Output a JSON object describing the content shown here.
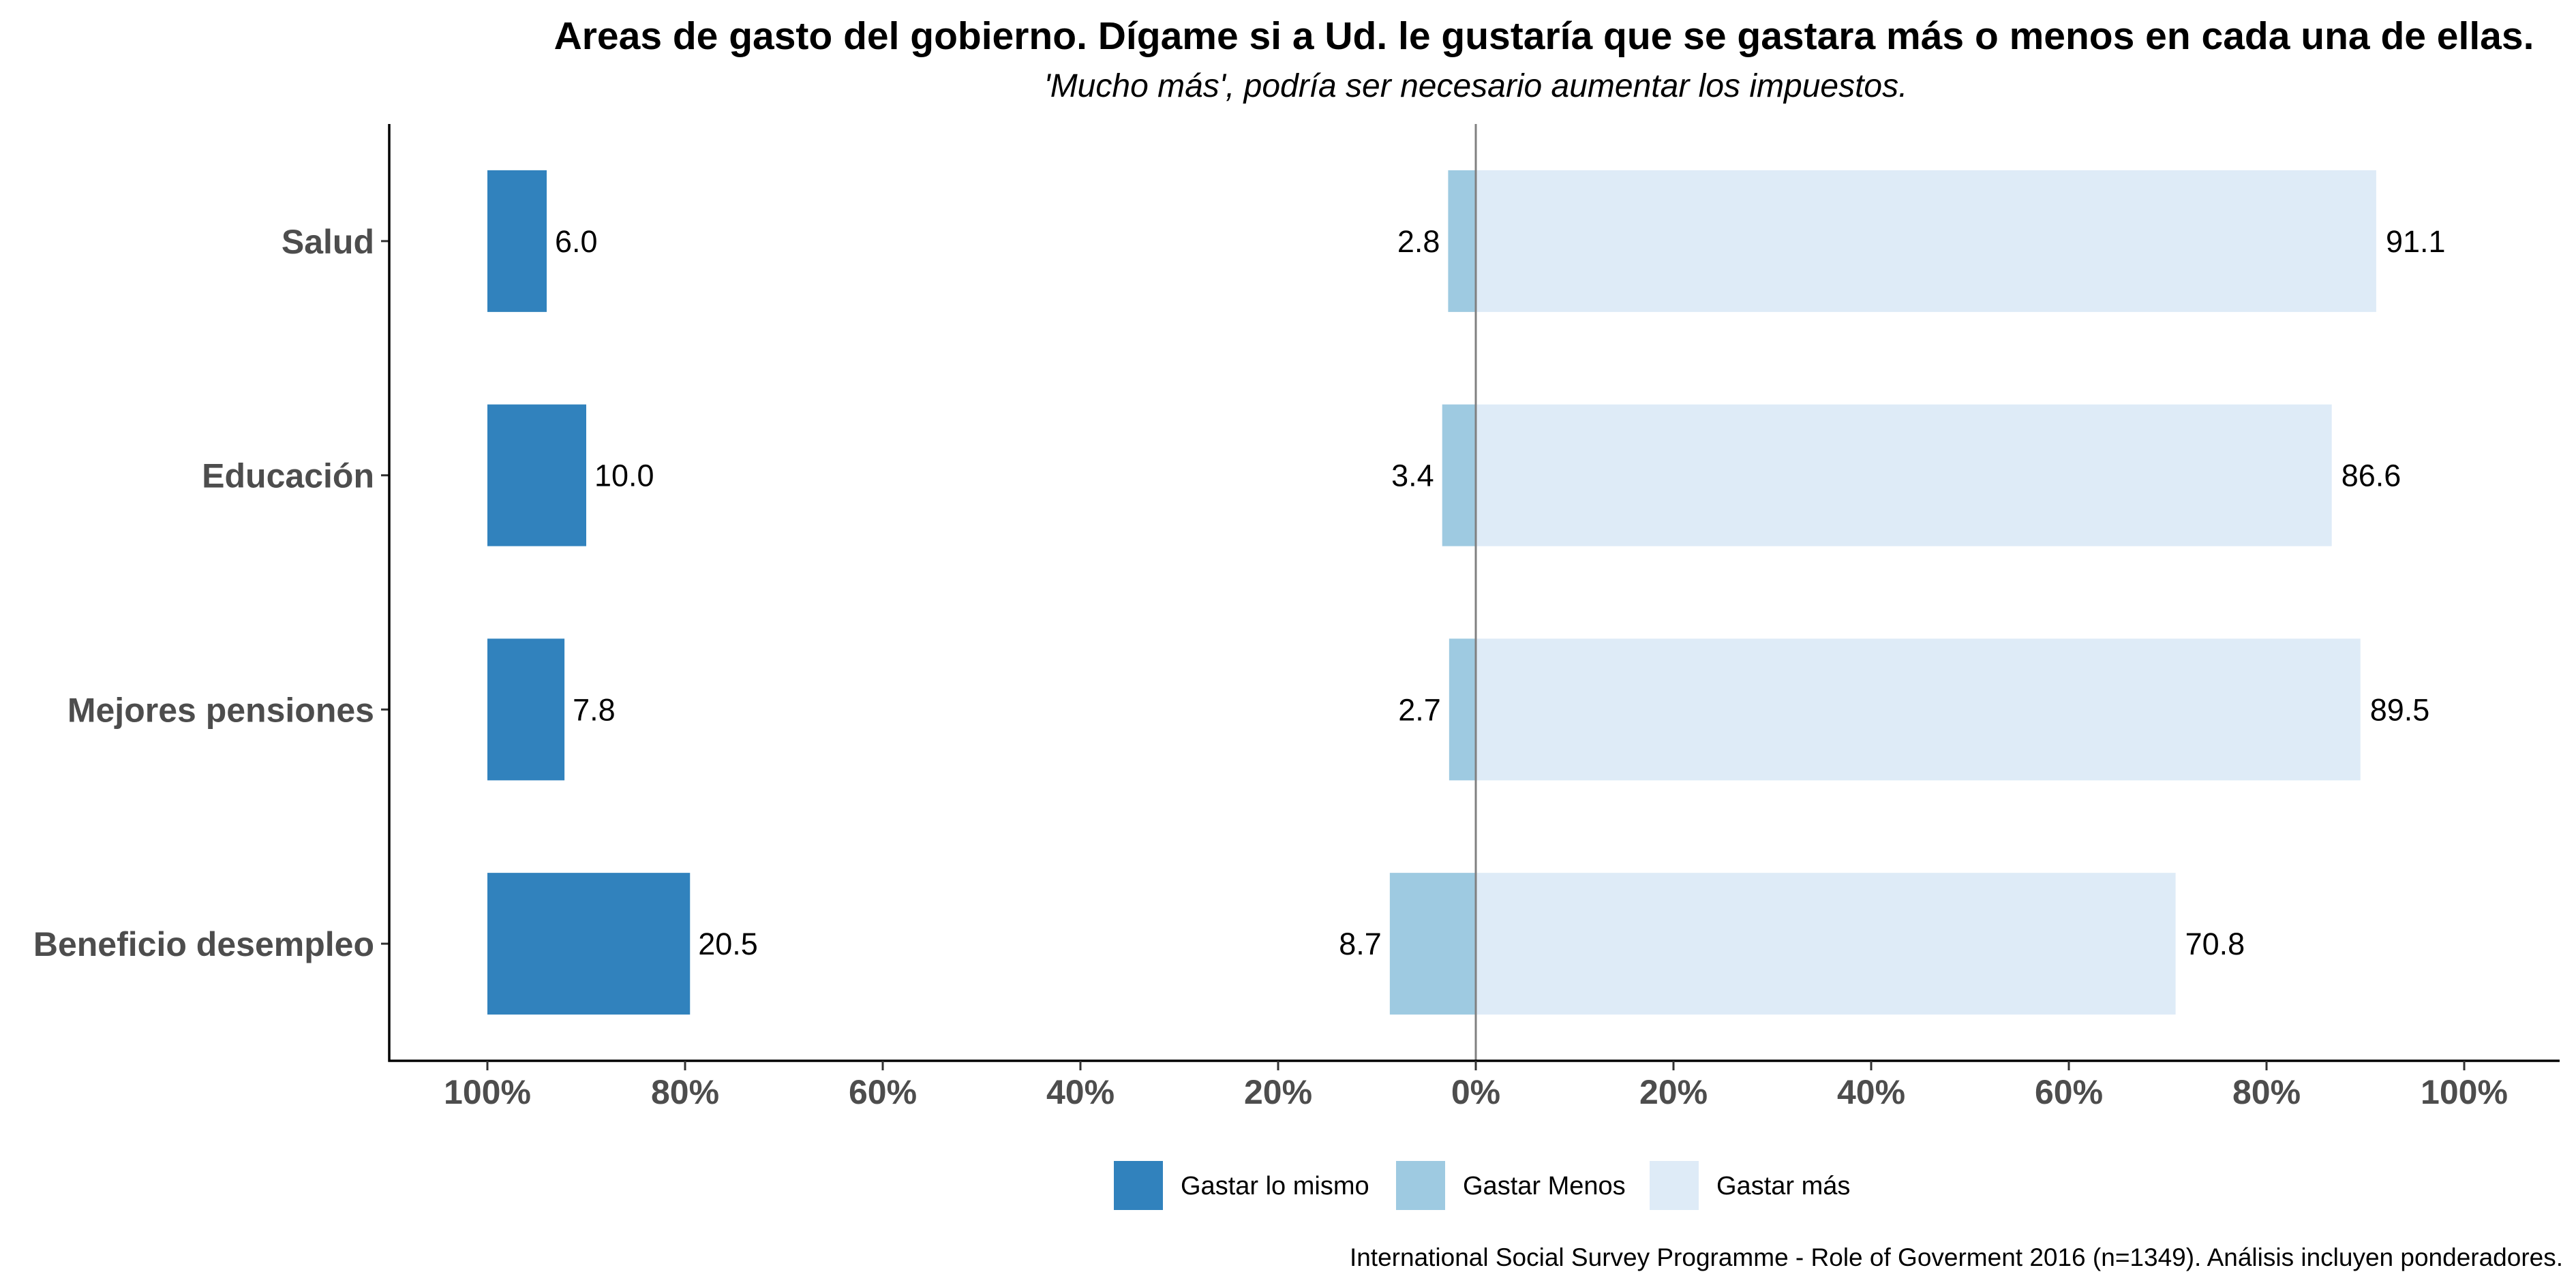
{
  "chart_data": {
    "type": "bar",
    "orientation": "horizontal",
    "title": "Areas de gasto del gobierno. Dígame si a Ud. le gustaría que se gastara más o menos en cada una de ellas.",
    "subtitle": "'Mucho más', podría ser necesario aumentar los impuestos.",
    "caption": "International Social Survey Programme - Role of Goverment 2016 (n=1349). Análisis incluyen ponderadores.",
    "xlabel": "",
    "ylabel": "",
    "categories": [
      "Salud",
      "Educación",
      "Mejores pensiones",
      "Beneficio desempleo"
    ],
    "series": [
      {
        "name": "Gastar lo mismo",
        "color": "#3182bd",
        "values": [
          6.0,
          10.0,
          7.8,
          20.5
        ],
        "labels": [
          "6.0",
          "10.0",
          "7.8",
          "20.5"
        ]
      },
      {
        "name": "Gastar Menos",
        "color": "#9ecae1",
        "values": [
          2.8,
          3.4,
          2.7,
          8.7
        ],
        "labels": [
          "2.8",
          "3.4",
          "2.7",
          "8.7"
        ]
      },
      {
        "name": "Gastar más",
        "color": "#deebf7",
        "values": [
          91.1,
          86.6,
          89.5,
          70.8
        ],
        "labels": [
          "91.1",
          "86.6",
          "89.5",
          "70.8"
        ]
      }
    ],
    "x_ticks": [
      "100%",
      "80%",
      "60%",
      "40%",
      "20%",
      "0%",
      "20%",
      "40%",
      "60%",
      "80%",
      "100%"
    ],
    "xlim": [
      -100,
      100
    ],
    "grid": false,
    "legend_position": "bottom",
    "colors": {
      "axis": "#000000",
      "zero_line": "#808080",
      "axis_text": "#4d4d4d"
    }
  }
}
